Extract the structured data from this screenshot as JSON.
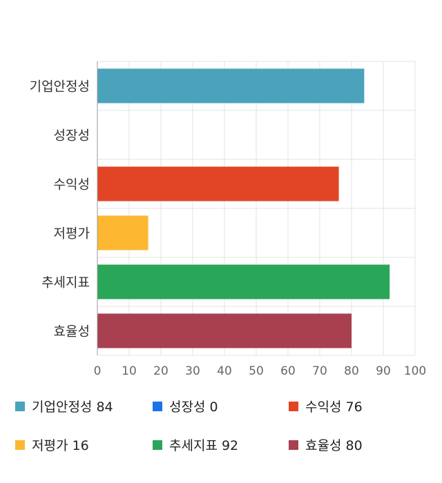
{
  "chart_data": {
    "type": "bar",
    "orientation": "horizontal",
    "categories": [
      "기업안정성",
      "성장성",
      "수익성",
      "저평가",
      "추세지표",
      "효율성"
    ],
    "values": [
      84,
      0,
      76,
      16,
      92,
      80
    ],
    "colors": [
      "#4aa3bb",
      "#1a73e8",
      "#e14525",
      "#fdb731",
      "#2aa658",
      "#a8404f"
    ],
    "xlim": [
      0,
      100
    ],
    "xticks": [
      0,
      10,
      20,
      30,
      40,
      50,
      60,
      70,
      80,
      90,
      100
    ],
    "grid": true,
    "legend_position": "bottom"
  },
  "legend": {
    "items": [
      {
        "label": "기업안정성 84",
        "color": "#4aa3bb"
      },
      {
        "label": "성장성 0",
        "color": "#1a73e8"
      },
      {
        "label": "수익성 76",
        "color": "#e14525"
      },
      {
        "label": "저평가 16",
        "color": "#fdb731"
      },
      {
        "label": "추세지표 92",
        "color": "#2aa658"
      },
      {
        "label": "효율성 80",
        "color": "#a8404f"
      }
    ]
  }
}
